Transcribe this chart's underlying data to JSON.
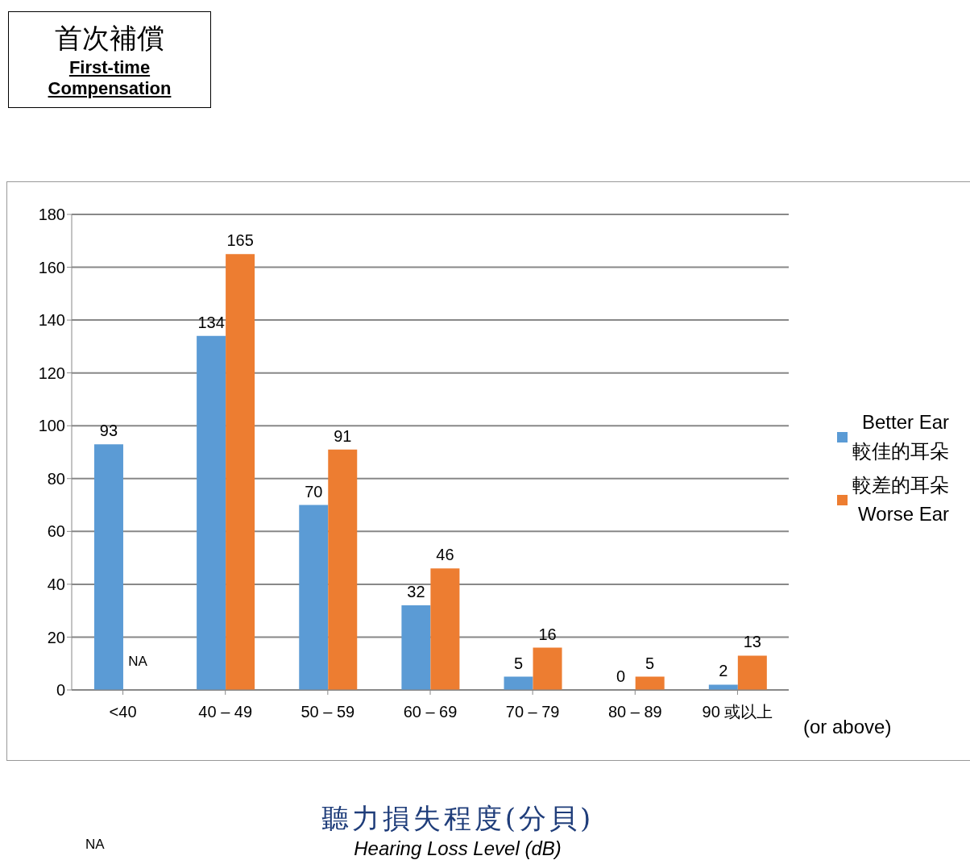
{
  "chart_data": {
    "type": "bar",
    "title": "首次補償\nFirst-time Compensation",
    "xlabel": "聽力損失程度(分貝)\nHearing Loss Level (dB)",
    "categories": [
      "<40",
      "40 – 49",
      "50 – 59",
      "60 – 69",
      "70 – 79",
      "80 – 89",
      "90 或以上"
    ],
    "series": [
      {
        "name": "Better Ear\n較佳的耳朵",
        "color": "#5b9bd5",
        "values": [
          93,
          134,
          70,
          32,
          5,
          0,
          2
        ],
        "value_labels": [
          "93",
          "134",
          "70",
          "32",
          "5",
          "0",
          "2"
        ]
      },
      {
        "name": "較差的耳朵\nWorse Ear",
        "color": "#ed7d31",
        "values": [
          null,
          165,
          91,
          46,
          16,
          5,
          13
        ],
        "value_labels": [
          "NA",
          "165",
          "91",
          "46",
          "16",
          "5",
          "13"
        ]
      }
    ],
    "ylim": [
      0,
      180
    ],
    "yticks": [
      0,
      20,
      40,
      60,
      80,
      100,
      120,
      140,
      160,
      180
    ],
    "grid": "y",
    "legend": "right",
    "annotations": [
      "(or above)",
      "NA"
    ]
  }
}
